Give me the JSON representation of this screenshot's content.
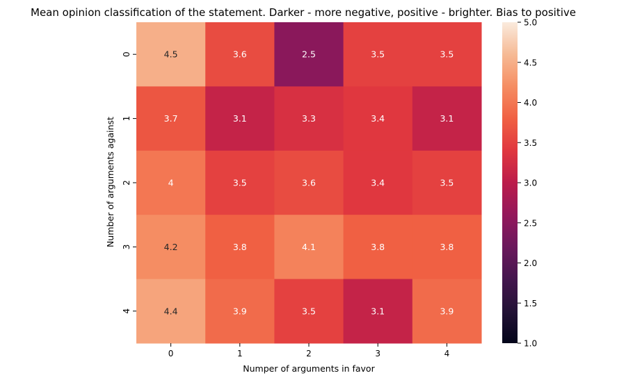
{
  "chart_data": {
    "type": "heatmap",
    "title": "Mean opinion classification of the statement. Darker - more negative, positive - brighter. Bias to positive",
    "xlabel": "Numper of arguments in favor",
    "ylabel": "Number of arguments against",
    "x_categories": [
      "0",
      "1",
      "2",
      "3",
      "4"
    ],
    "y_categories": [
      "0",
      "1",
      "2",
      "3",
      "4"
    ],
    "values": [
      [
        4.5,
        3.6,
        2.5,
        3.5,
        3.5
      ],
      [
        3.7,
        3.1,
        3.3,
        3.4,
        3.1
      ],
      [
        4.0,
        3.5,
        3.6,
        3.4,
        3.5
      ],
      [
        4.2,
        3.8,
        4.1,
        3.8,
        3.8
      ],
      [
        4.4,
        3.9,
        3.5,
        3.1,
        3.9
      ]
    ],
    "annotations": [
      [
        "4.5",
        "3.6",
        "2.5",
        "3.5",
        "3.5"
      ],
      [
        "3.7",
        "3.1",
        "3.3",
        "3.4",
        "3.1"
      ],
      [
        "4",
        "3.5",
        "3.6",
        "3.4",
        "3.5"
      ],
      [
        "4.2",
        "3.8",
        "4.1",
        "3.8",
        "3.8"
      ],
      [
        "4.4",
        "3.9",
        "3.5",
        "3.1",
        "3.9"
      ]
    ],
    "colorbar": {
      "vmin": 1.0,
      "vmax": 5.0,
      "ticks": [
        "1.0",
        "1.5",
        "2.0",
        "2.5",
        "3.0",
        "3.5",
        "4.0",
        "4.5",
        "5.0"
      ],
      "colormap": "rocket"
    },
    "grid": false
  }
}
